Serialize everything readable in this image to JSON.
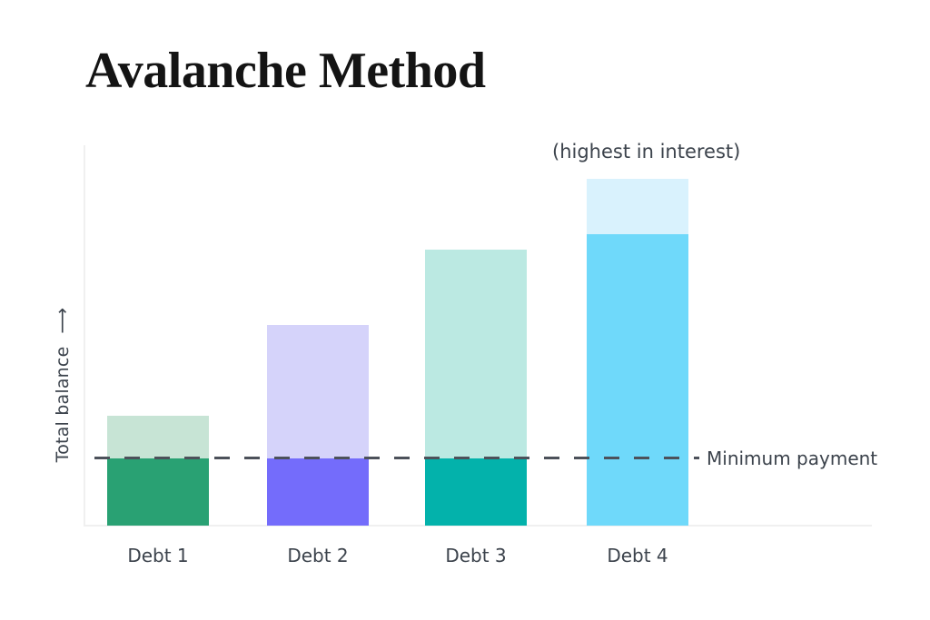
{
  "title": "Avalanche Method",
  "chart_data": {
    "type": "bar",
    "title": "Avalanche Method",
    "ylabel": "Total balance",
    "ylabel_arrow": "⟶",
    "annotation": "(highest in interest)",
    "annotation_target": "Debt 4",
    "xlabel": "",
    "axis_numeric_labels": false,
    "grid": false,
    "legend": "none",
    "reference_line": {
      "label": "Minimum payment",
      "value": 19.4
    },
    "categories": [
      "Debt 1",
      "Debt 2",
      "Debt 3",
      "Debt 4"
    ],
    "ylim": [
      0,
      110
    ],
    "bars": [
      {
        "label": "Debt 1",
        "total": 31.7,
        "payment": 19.4,
        "payment_color": "#29a173",
        "balance_color": "#c7e4d5"
      },
      {
        "label": "Debt 2",
        "total": 57.9,
        "payment": 19.4,
        "payment_color": "#746cfb",
        "balance_color": "#d5d3fa"
      },
      {
        "label": "Debt 3",
        "total": 79.6,
        "payment": 19.4,
        "payment_color": "#03b2ab",
        "balance_color": "#bbe9e2"
      },
      {
        "label": "Debt 4",
        "total": 100.0,
        "payment": 84.0,
        "payment_color": "#6fd9fa",
        "balance_color": "#d9f2fd"
      }
    ],
    "colors": {
      "dashed_line": "#4c515a",
      "axis_line": "#f0f0f0",
      "label_text": "#3c434c",
      "title_text": "#141414",
      "background": "#ffffff"
    }
  }
}
